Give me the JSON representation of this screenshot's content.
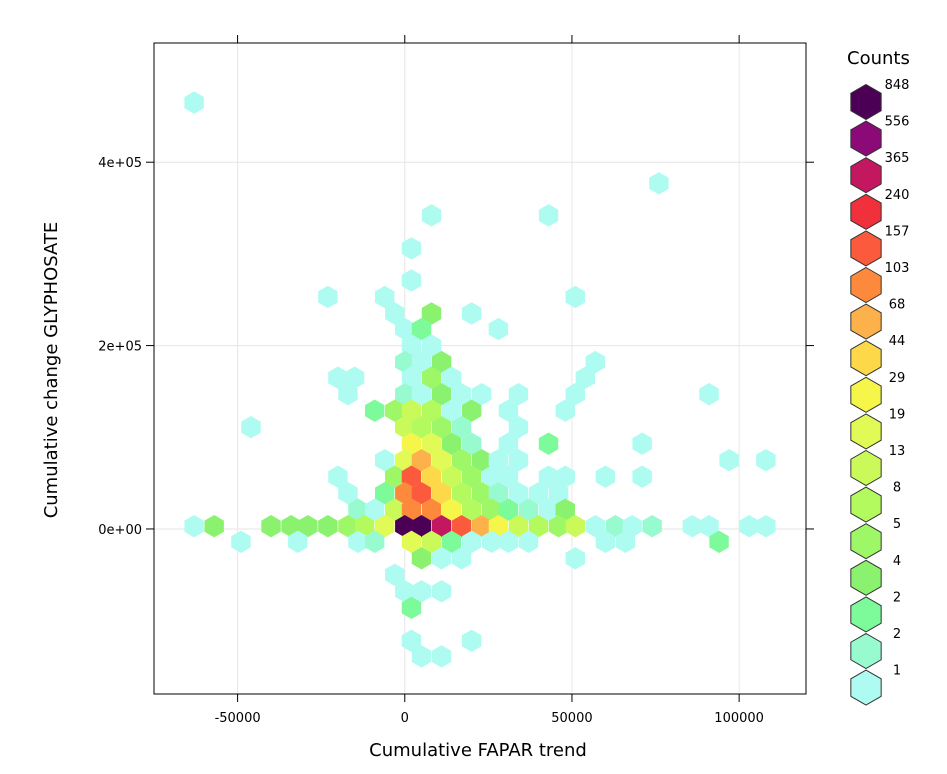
{
  "chart_data": {
    "type": "hexbin",
    "xlabel": "Cumulative FAPAR trend",
    "ylabel": "Cumulative change GLYPHOSATE",
    "xlim": [
      -75000,
      120000
    ],
    "ylim": [
      -180000,
      530000
    ],
    "x_ticks": [
      {
        "value": -50000,
        "label": "-50000"
      },
      {
        "value": 0,
        "label": "0"
      },
      {
        "value": 50000,
        "label": "50000"
      },
      {
        "value": 100000,
        "label": "100000"
      }
    ],
    "y_ticks": [
      {
        "value": 0,
        "label": "0e+00"
      },
      {
        "value": 200000,
        "label": "2e+05"
      },
      {
        "value": 400000,
        "label": "4e+05"
      }
    ],
    "grid": true,
    "legend": {
      "title": "Counts",
      "position": "right",
      "entries": [
        {
          "label": "848",
          "color": "#4b0055"
        },
        {
          "label": "556",
          "color": "#8b0a78"
        },
        {
          "label": "365",
          "color": "#c3185f"
        },
        {
          "label": "240",
          "color": "#f0303a"
        },
        {
          "label": "157",
          "color": "#fb5a3c"
        },
        {
          "label": "103",
          "color": "#fd8a3c"
        },
        {
          "label": "68",
          "color": "#fdb14a"
        },
        {
          "label": "44",
          "color": "#fdd94a"
        },
        {
          "label": "29",
          "color": "#f5f54a"
        },
        {
          "label": "19",
          "color": "#e1fa55"
        },
        {
          "label": "13",
          "color": "#c9fa5a"
        },
        {
          "label": "8",
          "color": "#b3fa5f"
        },
        {
          "label": "5",
          "color": "#9ef767"
        },
        {
          "label": "4",
          "color": "#8af26f"
        },
        {
          "label": "2",
          "color": "#7dfa9a"
        },
        {
          "label": "2",
          "color": "#98fbcf"
        },
        {
          "label": "1",
          "color": "#aefbf1"
        }
      ]
    },
    "cells": [
      {
        "x": -63000,
        "y": 465000,
        "level": 16
      },
      {
        "x": 76000,
        "y": 377000,
        "level": 16
      },
      {
        "x": 8000,
        "y": 342000,
        "level": 16
      },
      {
        "x": 43000,
        "y": 342000,
        "level": 16
      },
      {
        "x": 2000,
        "y": 306000,
        "level": 16
      },
      {
        "x": 2000,
        "y": 271000,
        "level": 16
      },
      {
        "x": -23000,
        "y": 253000,
        "level": 16
      },
      {
        "x": -6000,
        "y": 253000,
        "level": 16
      },
      {
        "x": 51000,
        "y": 253000,
        "level": 16
      },
      {
        "x": -3000,
        "y": 235000,
        "level": 16
      },
      {
        "x": 8000,
        "y": 235000,
        "level": 13
      },
      {
        "x": 20000,
        "y": 235000,
        "level": 16
      },
      {
        "x": 0,
        "y": 218000,
        "level": 16
      },
      {
        "x": 5000,
        "y": 218000,
        "level": 14
      },
      {
        "x": 28000,
        "y": 218000,
        "level": 16
      },
      {
        "x": 2000,
        "y": 200000,
        "level": 16
      },
      {
        "x": 8000,
        "y": 200000,
        "level": 16
      },
      {
        "x": 0,
        "y": 182000,
        "level": 15
      },
      {
        "x": 5000,
        "y": 182000,
        "level": 16
      },
      {
        "x": 11000,
        "y": 182000,
        "level": 13
      },
      {
        "x": 57000,
        "y": 182000,
        "level": 16
      },
      {
        "x": -20000,
        "y": 165000,
        "level": 16
      },
      {
        "x": -15000,
        "y": 165000,
        "level": 16
      },
      {
        "x": 2000,
        "y": 165000,
        "level": 16
      },
      {
        "x": 8000,
        "y": 165000,
        "level": 12
      },
      {
        "x": 14000,
        "y": 165000,
        "level": 16
      },
      {
        "x": 54000,
        "y": 165000,
        "level": 16
      },
      {
        "x": -17000,
        "y": 147000,
        "level": 16
      },
      {
        "x": 0,
        "y": 147000,
        "level": 15
      },
      {
        "x": 5000,
        "y": 147000,
        "level": 16
      },
      {
        "x": 11000,
        "y": 147000,
        "level": 13
      },
      {
        "x": 17000,
        "y": 147000,
        "level": 16
      },
      {
        "x": 23000,
        "y": 147000,
        "level": 16
      },
      {
        "x": 34000,
        "y": 147000,
        "level": 16
      },
      {
        "x": 51000,
        "y": 147000,
        "level": 16
      },
      {
        "x": 91000,
        "y": 147000,
        "level": 16
      },
      {
        "x": -9000,
        "y": 129000,
        "level": 14
      },
      {
        "x": -3000,
        "y": 129000,
        "level": 12
      },
      {
        "x": 2000,
        "y": 129000,
        "level": 10
      },
      {
        "x": 8000,
        "y": 129000,
        "level": 11
      },
      {
        "x": 14000,
        "y": 129000,
        "level": 16
      },
      {
        "x": 20000,
        "y": 129000,
        "level": 13
      },
      {
        "x": 31000,
        "y": 129000,
        "level": 16
      },
      {
        "x": 48000,
        "y": 129000,
        "level": 16
      },
      {
        "x": -46000,
        "y": 111000,
        "level": 16
      },
      {
        "x": 0,
        "y": 111000,
        "level": 10
      },
      {
        "x": 5000,
        "y": 111000,
        "level": 11
      },
      {
        "x": 11000,
        "y": 111000,
        "level": 12
      },
      {
        "x": 17000,
        "y": 111000,
        "level": 15
      },
      {
        "x": 34000,
        "y": 111000,
        "level": 16
      },
      {
        "x": 2000,
        "y": 93000,
        "level": 8
      },
      {
        "x": 8000,
        "y": 93000,
        "level": 9
      },
      {
        "x": 14000,
        "y": 93000,
        "level": 13
      },
      {
        "x": 20000,
        "y": 93000,
        "level": 15
      },
      {
        "x": 31000,
        "y": 93000,
        "level": 16
      },
      {
        "x": 43000,
        "y": 93000,
        "level": 14
      },
      {
        "x": 71000,
        "y": 93000,
        "level": 16
      },
      {
        "x": -6000,
        "y": 75000,
        "level": 16
      },
      {
        "x": 0,
        "y": 75000,
        "level": 9
      },
      {
        "x": 5000,
        "y": 75000,
        "level": 6
      },
      {
        "x": 11000,
        "y": 75000,
        "level": 9
      },
      {
        "x": 17000,
        "y": 75000,
        "level": 12
      },
      {
        "x": 23000,
        "y": 75000,
        "level": 13
      },
      {
        "x": 28000,
        "y": 75000,
        "level": 16
      },
      {
        "x": 34000,
        "y": 75000,
        "level": 16
      },
      {
        "x": 97000,
        "y": 75000,
        "level": 16
      },
      {
        "x": 108000,
        "y": 75000,
        "level": 16
      },
      {
        "x": -20000,
        "y": 57000,
        "level": 16
      },
      {
        "x": -3000,
        "y": 57000,
        "level": 12
      },
      {
        "x": 2000,
        "y": 57000,
        "level": 4
      },
      {
        "x": 8000,
        "y": 57000,
        "level": 7
      },
      {
        "x": 14000,
        "y": 57000,
        "level": 10
      },
      {
        "x": 20000,
        "y": 57000,
        "level": 12
      },
      {
        "x": 26000,
        "y": 57000,
        "level": 16
      },
      {
        "x": 31000,
        "y": 57000,
        "level": 16
      },
      {
        "x": 43000,
        "y": 57000,
        "level": 16
      },
      {
        "x": 48000,
        "y": 57000,
        "level": 16
      },
      {
        "x": 60000,
        "y": 57000,
        "level": 16
      },
      {
        "x": 71000,
        "y": 57000,
        "level": 16
      },
      {
        "x": -17000,
        "y": 39000,
        "level": 16
      },
      {
        "x": -6000,
        "y": 39000,
        "level": 14
      },
      {
        "x": 0,
        "y": 39000,
        "level": 5
      },
      {
        "x": 5000,
        "y": 39000,
        "level": 4
      },
      {
        "x": 11000,
        "y": 39000,
        "level": 7
      },
      {
        "x": 17000,
        "y": 39000,
        "level": 11
      },
      {
        "x": 23000,
        "y": 39000,
        "level": 12
      },
      {
        "x": 28000,
        "y": 39000,
        "level": 15
      },
      {
        "x": 34000,
        "y": 39000,
        "level": 16
      },
      {
        "x": 40000,
        "y": 39000,
        "level": 16
      },
      {
        "x": 46000,
        "y": 39000,
        "level": 16
      },
      {
        "x": -14000,
        "y": 21000,
        "level": 15
      },
      {
        "x": -9000,
        "y": 21000,
        "level": 16
      },
      {
        "x": -3000,
        "y": 21000,
        "level": 10
      },
      {
        "x": 2000,
        "y": 21000,
        "level": 5
      },
      {
        "x": 8000,
        "y": 21000,
        "level": 5
      },
      {
        "x": 14000,
        "y": 21000,
        "level": 8
      },
      {
        "x": 20000,
        "y": 21000,
        "level": 11
      },
      {
        "x": 26000,
        "y": 21000,
        "level": 12
      },
      {
        "x": 31000,
        "y": 21000,
        "level": 14
      },
      {
        "x": 37000,
        "y": 21000,
        "level": 15
      },
      {
        "x": 43000,
        "y": 21000,
        "level": 16
      },
      {
        "x": 48000,
        "y": 21000,
        "level": 13
      },
      {
        "x": -63000,
        "y": 3000,
        "level": 16
      },
      {
        "x": -57000,
        "y": 3000,
        "level": 13
      },
      {
        "x": -40000,
        "y": 3000,
        "level": 13
      },
      {
        "x": -34000,
        "y": 3000,
        "level": 13
      },
      {
        "x": -29000,
        "y": 3000,
        "level": 13
      },
      {
        "x": -23000,
        "y": 3000,
        "level": 13
      },
      {
        "x": -17000,
        "y": 3000,
        "level": 12
      },
      {
        "x": -12000,
        "y": 3000,
        "level": 11
      },
      {
        "x": -6000,
        "y": 3000,
        "level": 9
      },
      {
        "x": 0,
        "y": 3000,
        "level": 0
      },
      {
        "x": 5000,
        "y": 3000,
        "level": 0
      },
      {
        "x": 11000,
        "y": 3000,
        "level": 2
      },
      {
        "x": 17000,
        "y": 3000,
        "level": 4
      },
      {
        "x": 23000,
        "y": 3000,
        "level": 6
      },
      {
        "x": 28000,
        "y": 3000,
        "level": 8
      },
      {
        "x": 34000,
        "y": 3000,
        "level": 10
      },
      {
        "x": 40000,
        "y": 3000,
        "level": 11
      },
      {
        "x": 46000,
        "y": 3000,
        "level": 12
      },
      {
        "x": 51000,
        "y": 3000,
        "level": 10
      },
      {
        "x": 57000,
        "y": 3000,
        "level": 16
      },
      {
        "x": 63000,
        "y": 3000,
        "level": 15
      },
      {
        "x": 68000,
        "y": 3000,
        "level": 16
      },
      {
        "x": 74000,
        "y": 3000,
        "level": 15
      },
      {
        "x": 86000,
        "y": 3000,
        "level": 16
      },
      {
        "x": 91000,
        "y": 3000,
        "level": 16
      },
      {
        "x": 103000,
        "y": 3000,
        "level": 16
      },
      {
        "x": 108000,
        "y": 3000,
        "level": 16
      },
      {
        "x": -49000,
        "y": -14000,
        "level": 16
      },
      {
        "x": -32000,
        "y": -14000,
        "level": 16
      },
      {
        "x": -14000,
        "y": -14000,
        "level": 16
      },
      {
        "x": -9000,
        "y": -14000,
        "level": 15
      },
      {
        "x": 2000,
        "y": -14000,
        "level": 9
      },
      {
        "x": 8000,
        "y": -14000,
        "level": 10
      },
      {
        "x": 14000,
        "y": -14000,
        "level": 14
      },
      {
        "x": 20000,
        "y": -14000,
        "level": 16
      },
      {
        "x": 26000,
        "y": -14000,
        "level": 16
      },
      {
        "x": 31000,
        "y": -14000,
        "level": 16
      },
      {
        "x": 37000,
        "y": -14000,
        "level": 16
      },
      {
        "x": 60000,
        "y": -14000,
        "level": 16
      },
      {
        "x": 66000,
        "y": -14000,
        "level": 16
      },
      {
        "x": 94000,
        "y": -14000,
        "level": 14
      },
      {
        "x": 5000,
        "y": -32000,
        "level": 13
      },
      {
        "x": 11000,
        "y": -32000,
        "level": 16
      },
      {
        "x": 17000,
        "y": -32000,
        "level": 16
      },
      {
        "x": 51000,
        "y": -32000,
        "level": 16
      },
      {
        "x": -3000,
        "y": -50000,
        "level": 16
      },
      {
        "x": 0,
        "y": -68000,
        "level": 16
      },
      {
        "x": 5000,
        "y": -68000,
        "level": 16
      },
      {
        "x": 11000,
        "y": -68000,
        "level": 16
      },
      {
        "x": 2000,
        "y": -86000,
        "level": 14
      },
      {
        "x": 2000,
        "y": -122000,
        "level": 16
      },
      {
        "x": 20000,
        "y": -122000,
        "level": 16
      },
      {
        "x": 5000,
        "y": -139000,
        "level": 16
      },
      {
        "x": 11000,
        "y": -139000,
        "level": 16
      }
    ]
  }
}
